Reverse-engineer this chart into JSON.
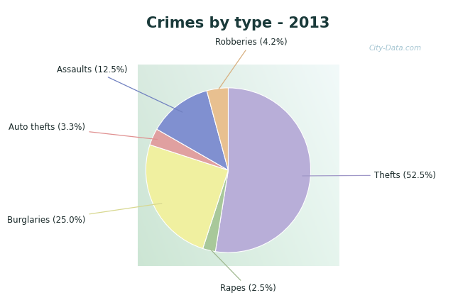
{
  "title": "Crimes by type - 2013",
  "title_fontsize": 15,
  "slices": [
    {
      "label": "Thefts (52.5%)",
      "value": 52.5,
      "color": "#b8aed8"
    },
    {
      "label": "Rapes (2.5%)",
      "value": 2.5,
      "color": "#a8c89a"
    },
    {
      "label": "Burglaries (25.0%)",
      "value": 25.0,
      "color": "#f0f0a0"
    },
    {
      "label": "Auto thefts (3.3%)",
      "value": 3.3,
      "color": "#e0a0a0"
    },
    {
      "label": "Assaults (12.5%)",
      "value": 12.5,
      "color": "#8090d0"
    },
    {
      "label": "Robberies (4.2%)",
      "value": 4.2,
      "color": "#e8c090"
    }
  ],
  "top_bar_color": "#00e5e5",
  "bg_color": "#c8e8da",
  "watermark": "City-Data.com",
  "label_fontsize": 8.5,
  "startangle": 90,
  "top_bar_height": 0.115
}
